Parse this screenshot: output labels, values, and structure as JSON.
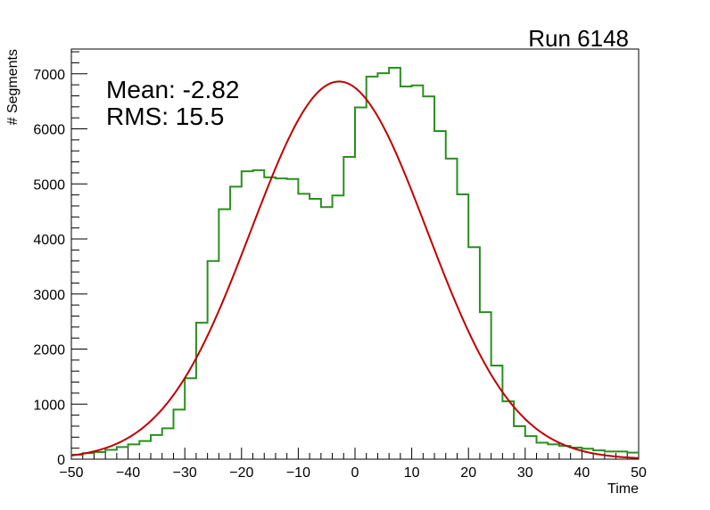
{
  "chart_data": {
    "type": "histogram",
    "title": "Run 6148",
    "xlabel": "Time",
    "ylabel": "# Segments",
    "xlim": [
      -50,
      50
    ],
    "ylim": [
      0,
      7450
    ],
    "x_ticks": [
      -50,
      -40,
      -30,
      -20,
      -10,
      0,
      10,
      20,
      30,
      40,
      50
    ],
    "x_tick_labels": [
      "−50",
      "−40",
      "−30",
      "−20",
      "−10",
      "0",
      "10",
      "20",
      "30",
      "40",
      "50"
    ],
    "y_ticks": [
      0,
      1000,
      2000,
      3000,
      4000,
      5000,
      6000,
      7000
    ],
    "y_tick_labels": [
      "0",
      "1000",
      "2000",
      "3000",
      "4000",
      "5000",
      "6000",
      "7000"
    ],
    "grid": false,
    "stats": {
      "mean_text": "Mean: -2.82",
      "rms_text": "RMS:  15.5"
    },
    "histogram": {
      "color": "#2a8f1f",
      "bin_edges": [
        -50,
        -48,
        -46,
        -44,
        -42,
        -40,
        -38,
        -36,
        -34,
        -32,
        -30,
        -28,
        -26,
        -24,
        -22,
        -20,
        -18,
        -16,
        -14,
        -12,
        -10,
        -8,
        -6,
        -4,
        -2,
        0,
        2,
        4,
        6,
        8,
        10,
        12,
        14,
        16,
        18,
        20,
        22,
        24,
        26,
        28,
        30,
        32,
        34,
        36,
        38,
        40,
        42,
        44,
        46,
        48,
        50
      ],
      "counts": [
        80,
        110,
        130,
        170,
        220,
        270,
        330,
        440,
        560,
        900,
        1470,
        2480,
        3600,
        4540,
        4950,
        5230,
        5250,
        5120,
        5100,
        5090,
        4820,
        4730,
        4580,
        4790,
        5490,
        6390,
        6950,
        7010,
        7110,
        6770,
        6790,
        6590,
        5960,
        5460,
        4810,
        3850,
        2670,
        1700,
        1050,
        600,
        420,
        300,
        270,
        240,
        210,
        190,
        160,
        140,
        140,
        120
      ]
    },
    "fit": {
      "color": "#c00000",
      "type": "gaussian",
      "amplitude": 6860,
      "mean": -2.82,
      "sigma": 15.5
    }
  }
}
